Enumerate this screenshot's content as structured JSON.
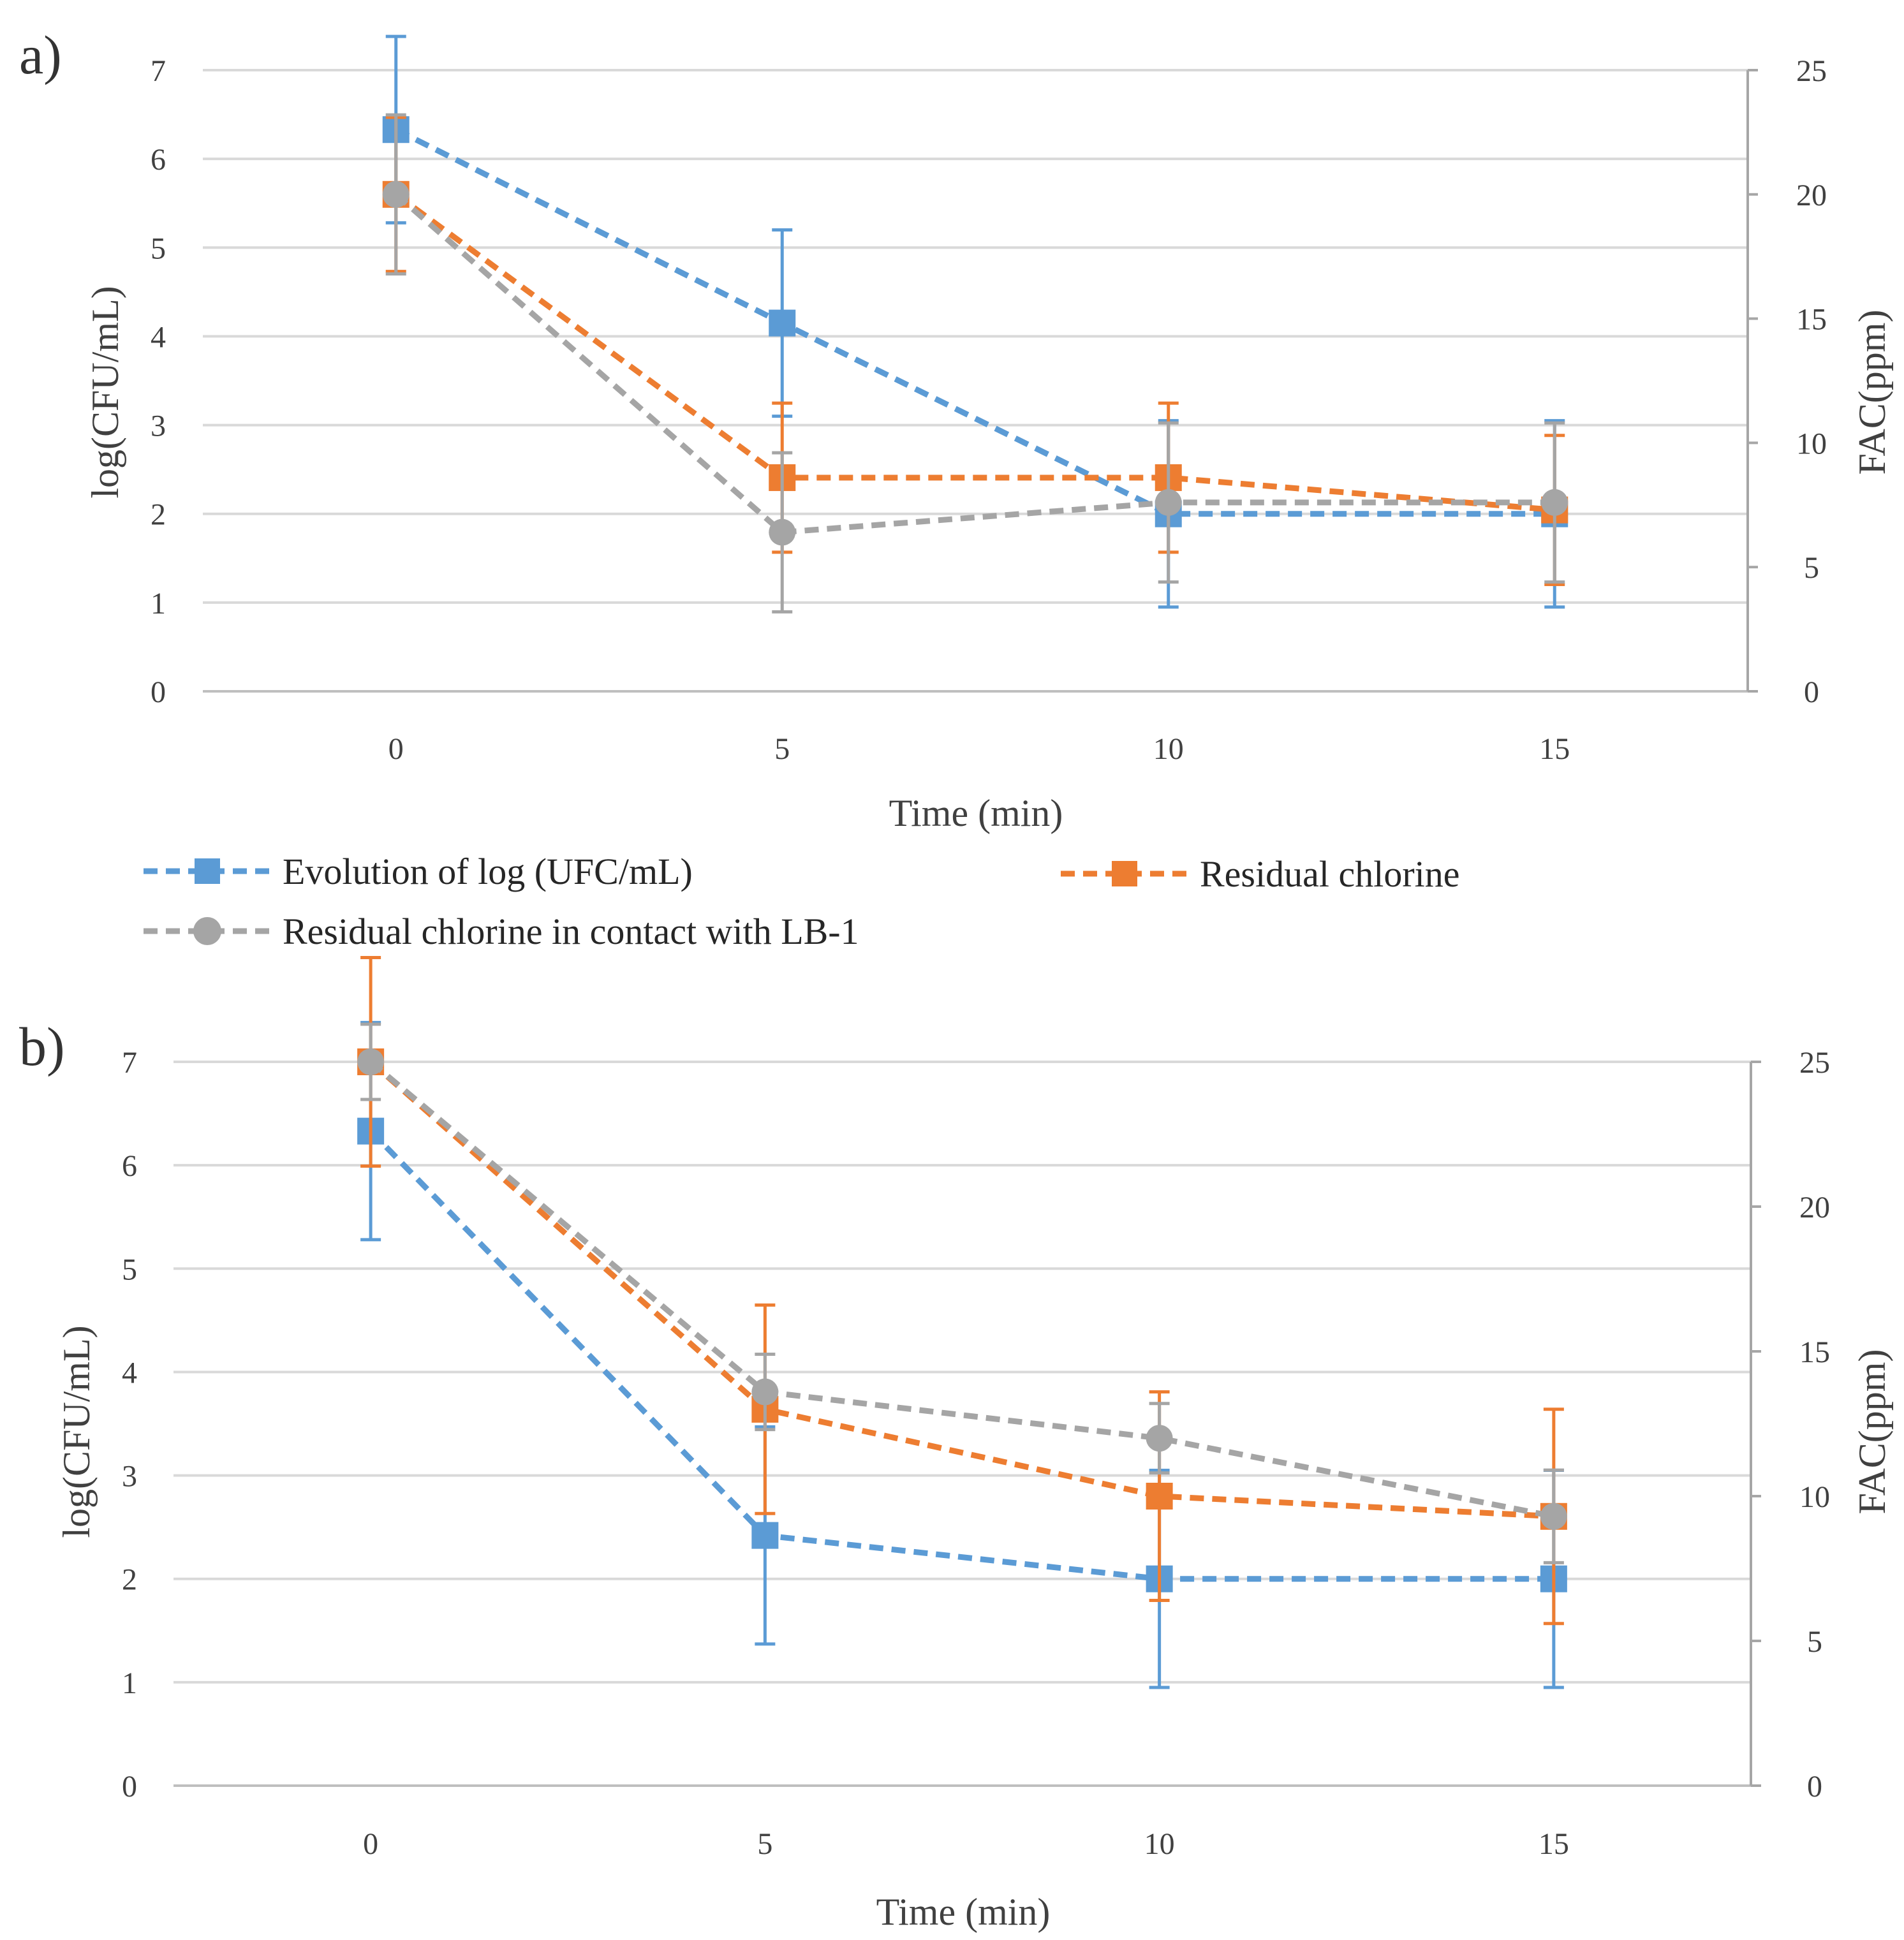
{
  "chart_data": [
    {
      "type": "line",
      "panel_label": "a)",
      "xlabel": "Time (min)",
      "ylabel": "log(CFU/mL)",
      "y2label": "FAC(ppm)",
      "x": [
        0,
        5,
        10,
        15
      ],
      "x_ticks": [
        "0",
        "5",
        "10",
        "15"
      ],
      "xlim": [
        -2.5,
        17.5
      ],
      "ylim": [
        0,
        7
      ],
      "y_ticks": [
        "0",
        "1",
        "2",
        "3",
        "4",
        "5",
        "6",
        "7"
      ],
      "y2lim": [
        0,
        25
      ],
      "y2_ticks": [
        "0",
        "5",
        "10",
        "15",
        "20",
        "25"
      ],
      "grid": true,
      "legend": {
        "position": "bottom",
        "entries": [
          "Evolution of log (UFC/mL)",
          "Residual chlorine",
          "Residual chlorine in contact with LB-1"
        ]
      },
      "series": [
        {
          "name": "Evolution of log (UFC/mL)",
          "axis": "left",
          "marker": "square",
          "color": "#5B9BD5",
          "values": [
            6.33,
            4.15,
            2.0,
            2.0
          ],
          "error": [
            1.05,
            1.05,
            1.05,
            1.05
          ]
        },
        {
          "name": "Residual chlorine",
          "axis": "right",
          "marker": "square",
          "color": "#ED7D31",
          "values": [
            20.0,
            8.6,
            8.6,
            7.3
          ],
          "error": [
            3.1,
            3.0,
            3.0,
            3.0
          ]
        },
        {
          "name": "Residual chlorine in contact with LB-1",
          "axis": "right",
          "marker": "circle",
          "color": "#A5A5A5",
          "values": [
            20.0,
            6.4,
            7.6,
            7.6
          ],
          "error": [
            3.2,
            3.2,
            3.2,
            3.2
          ]
        }
      ]
    },
    {
      "type": "line",
      "panel_label": "b)",
      "xlabel": "Time (min)",
      "ylabel": "log(CFU/mL)",
      "y2label": "FAC(ppm)",
      "x": [
        0,
        5,
        10,
        15
      ],
      "x_ticks": [
        "0",
        "5",
        "10",
        "15"
      ],
      "xlim": [
        -2.5,
        17.5
      ],
      "ylim": [
        0,
        7
      ],
      "y_ticks": [
        "0",
        "1",
        "2",
        "3",
        "4",
        "5",
        "6",
        "7"
      ],
      "y2lim": [
        0,
        25
      ],
      "y2_ticks": [
        "0",
        "5",
        "10",
        "15",
        "20",
        "25"
      ],
      "grid": true,
      "series": [
        {
          "name": "Evolution of log (UFC/mL)",
          "axis": "left",
          "marker": "square",
          "color": "#5B9BD5",
          "values": [
            6.33,
            2.42,
            2.0,
            2.0
          ],
          "error": [
            1.05,
            1.05,
            1.05,
            1.05
          ]
        },
        {
          "name": "Residual chlorine",
          "axis": "right",
          "marker": "square",
          "color": "#ED7D31",
          "values": [
            25.0,
            13.0,
            10.0,
            9.3
          ],
          "error": [
            3.6,
            3.6,
            3.6,
            3.7
          ]
        },
        {
          "name": "Residual chlorine in contact with LB-1",
          "axis": "right",
          "marker": "circle",
          "color": "#A5A5A5",
          "values": [
            25.0,
            13.6,
            12.0,
            9.3
          ],
          "error": [
            1.3,
            1.3,
            1.2,
            1.6
          ]
        }
      ]
    }
  ]
}
